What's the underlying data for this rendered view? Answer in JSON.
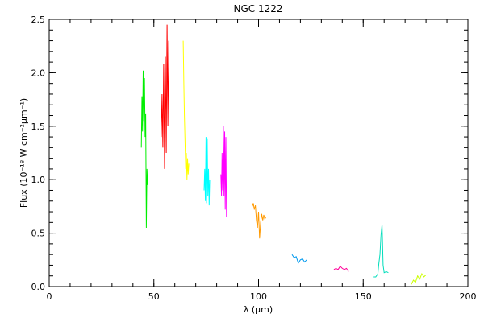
{
  "chart_data": {
    "type": "line",
    "title": "NGC 1222",
    "xlabel": "λ (μm)",
    "ylabel": "Flux (10⁻¹⁸ W cm⁻²μm⁻¹)",
    "xlim": [
      0,
      200
    ],
    "ylim": [
      0,
      2.5
    ],
    "grid": false,
    "x_ticks": [
      0,
      50,
      100,
      150,
      200
    ],
    "x_tick_labels": [
      "0",
      "50",
      "100",
      "150",
      "200"
    ],
    "x_minor_step": 10,
    "y_ticks": [
      0.0,
      0.5,
      1.0,
      1.5,
      2.0,
      2.5
    ],
    "y_tick_labels": [
      "0.0",
      "0.5",
      "1.0",
      "1.5",
      "2.0",
      "2.5"
    ],
    "y_minor_step": 0.1,
    "series": [
      {
        "color": "#00ee00",
        "x": [
          44.0,
          44.3,
          44.6,
          44.9,
          45.2,
          45.5,
          45.8,
          46.1,
          46.4,
          46.7,
          47.0
        ],
        "y": [
          1.3,
          1.78,
          1.45,
          2.02,
          1.55,
          1.95,
          1.4,
          1.62,
          0.55,
          1.1,
          0.95
        ]
      },
      {
        "color": "#ff0000",
        "x": [
          53.5,
          53.9,
          54.3,
          54.7,
          55.1,
          55.5,
          55.9,
          56.3,
          56.7,
          57.1
        ],
        "y": [
          1.4,
          1.8,
          1.3,
          2.08,
          1.1,
          2.15,
          1.25,
          2.45,
          1.5,
          2.3
        ]
      },
      {
        "color": "#ffff00",
        "x": [
          64.0,
          64.3,
          64.6,
          64.9,
          65.2,
          65.5,
          65.8,
          66.1,
          66.4,
          66.7
        ],
        "y": [
          2.3,
          1.9,
          1.6,
          1.35,
          1.1,
          1.25,
          1.0,
          1.2,
          1.05,
          1.15
        ]
      },
      {
        "color": "#00ffff",
        "x": [
          74.0,
          74.3,
          74.6,
          74.9,
          75.2,
          75.5,
          75.8,
          76.1,
          76.4,
          76.7
        ],
        "y": [
          0.9,
          1.1,
          0.8,
          1.4,
          0.78,
          1.38,
          0.85,
          1.1,
          0.76,
          1.0
        ]
      },
      {
        "color": "#ff00ff",
        "x": [
          82.0,
          82.3,
          82.6,
          82.9,
          83.2,
          83.5,
          83.8,
          84.1,
          84.4,
          84.7
        ],
        "y": [
          1.05,
          0.85,
          1.25,
          0.9,
          1.5,
          0.85,
          1.45,
          0.72,
          1.4,
          0.65
        ]
      },
      {
        "color": "#ff9900",
        "x": [
          97.0,
          97.5,
          98.0,
          98.5,
          99.0,
          99.5,
          100.0,
          100.5,
          101.0,
          101.5,
          102.0,
          102.5,
          103.0,
          103.5
        ],
        "y": [
          0.75,
          0.78,
          0.72,
          0.76,
          0.62,
          0.55,
          0.7,
          0.45,
          0.6,
          0.68,
          0.62,
          0.67,
          0.63,
          0.65
        ]
      },
      {
        "color": "#0099ee",
        "x": [
          116.0,
          117.0,
          118.0,
          119.0,
          120.0,
          121.0,
          122.0,
          123.0
        ],
        "y": [
          0.3,
          0.27,
          0.28,
          0.22,
          0.25,
          0.26,
          0.23,
          0.25
        ]
      },
      {
        "color": "#ff0099",
        "x": [
          136.0,
          137.0,
          138.0,
          139.0,
          140.0,
          141.0,
          142.0,
          143.0
        ],
        "y": [
          0.16,
          0.17,
          0.16,
          0.19,
          0.17,
          0.16,
          0.17,
          0.14
        ]
      },
      {
        "color": "#00ddbb",
        "x": [
          155.0,
          156.0,
          157.0,
          157.5,
          158.0,
          158.5,
          159.0,
          159.5,
          160.0,
          161.0,
          162.0
        ],
        "y": [
          0.09,
          0.09,
          0.12,
          0.22,
          0.3,
          0.48,
          0.58,
          0.2,
          0.13,
          0.14,
          0.13
        ]
      },
      {
        "color": "#ccff00",
        "x": [
          173.0,
          174.0,
          175.0,
          176.0,
          177.0,
          178.0,
          179.0,
          180.0
        ],
        "y": [
          0.02,
          0.06,
          0.04,
          0.1,
          0.07,
          0.12,
          0.09,
          0.11
        ]
      }
    ]
  }
}
